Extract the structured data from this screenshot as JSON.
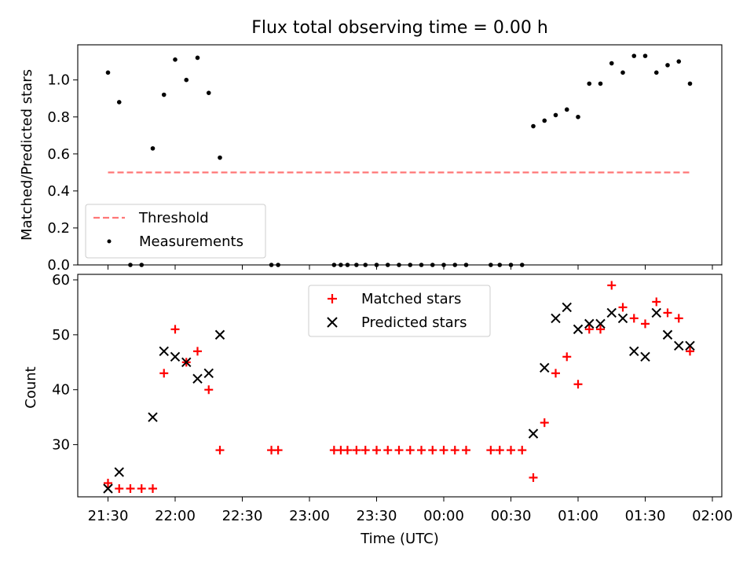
{
  "figure_title": "Flux total observing time = 0.00 h",
  "x_axis": {
    "label": "Time (UTC)",
    "tick_labels": [
      "21:30",
      "22:00",
      "22:30",
      "23:00",
      "23:30",
      "00:00",
      "00:30",
      "01:00",
      "01:30",
      "02:00"
    ]
  },
  "chart_data": [
    {
      "type": "scatter",
      "title": "Flux total observing time = 0.00 h",
      "ylabel": "Matched/Predicted stars",
      "ylim": [
        0,
        1.19
      ],
      "yticks": [
        "0.0",
        "0.2",
        "0.4",
        "0.6",
        "0.8",
        "1.0"
      ],
      "legend_position": "lower-left",
      "threshold": {
        "name": "Threshold",
        "value": 0.5,
        "x_start": 0,
        "x_end": 260,
        "color": "#ff7777"
      },
      "series": [
        {
          "name": "Measurements",
          "color": "#000000",
          "x": [
            0,
            5,
            10,
            15,
            20,
            25,
            30,
            35,
            40,
            45,
            50,
            73,
            76,
            101,
            104,
            107,
            111,
            115,
            120,
            125,
            130,
            135,
            140,
            145,
            150,
            155,
            160,
            171,
            175,
            180,
            185,
            190,
            195,
            200,
            205,
            210,
            215,
            220,
            225,
            230,
            235,
            240,
            245,
            250,
            255,
            260
          ],
          "y": [
            1.04,
            0.88,
            0.0,
            0.0,
            0.63,
            0.92,
            1.11,
            1.0,
            1.12,
            0.93,
            0.58,
            0.0,
            0.0,
            0.0,
            0.0,
            0.0,
            0.0,
            0.0,
            0.0,
            0.0,
            0.0,
            0.0,
            0.0,
            0.0,
            0.0,
            0.0,
            0.0,
            0.0,
            0.0,
            0.0,
            0.0,
            0.75,
            0.78,
            0.81,
            0.84,
            0.8,
            0.98,
            0.98,
            1.09,
            1.04,
            1.13,
            1.13,
            1.04,
            1.08,
            1.1,
            0.98
          ]
        }
      ]
    },
    {
      "type": "scatter",
      "ylabel": "Count",
      "ylim": [
        20.5,
        61
      ],
      "yticks": [
        "30",
        "40",
        "50",
        "60"
      ],
      "legend_position": "upper-center",
      "series": [
        {
          "name": "Matched stars",
          "marker": "plus",
          "color": "#ff0000",
          "x": [
            0,
            5,
            10,
            15,
            20,
            25,
            30,
            35,
            40,
            45,
            50,
            73,
            76,
            101,
            104,
            107,
            111,
            115,
            120,
            125,
            130,
            135,
            140,
            145,
            150,
            155,
            160,
            171,
            175,
            180,
            185,
            190,
            195,
            200,
            205,
            210,
            215,
            220,
            225,
            230,
            235,
            240,
            245,
            250,
            255,
            260
          ],
          "y": [
            23,
            22,
            22,
            22,
            22,
            43,
            51,
            45,
            47,
            40,
            29,
            29,
            29,
            29,
            29,
            29,
            29,
            29,
            29,
            29,
            29,
            29,
            29,
            29,
            29,
            29,
            29,
            29,
            29,
            29,
            29,
            24,
            34,
            43,
            46,
            41,
            51,
            51,
            59,
            55,
            53,
            52,
            56,
            54,
            53,
            47
          ]
        },
        {
          "name": "Predicted stars",
          "marker": "x",
          "color": "#000000",
          "x": [
            0,
            5,
            20,
            25,
            30,
            35,
            40,
            45,
            50,
            190,
            195,
            200,
            205,
            210,
            215,
            220,
            225,
            230,
            235,
            240,
            245,
            250,
            255,
            260
          ],
          "y": [
            22,
            25,
            35,
            47,
            46,
            45,
            42,
            43,
            50,
            32,
            44,
            53,
            55,
            51,
            52,
            52,
            54,
            53,
            47,
            46,
            54,
            50,
            48,
            48
          ]
        }
      ]
    }
  ]
}
